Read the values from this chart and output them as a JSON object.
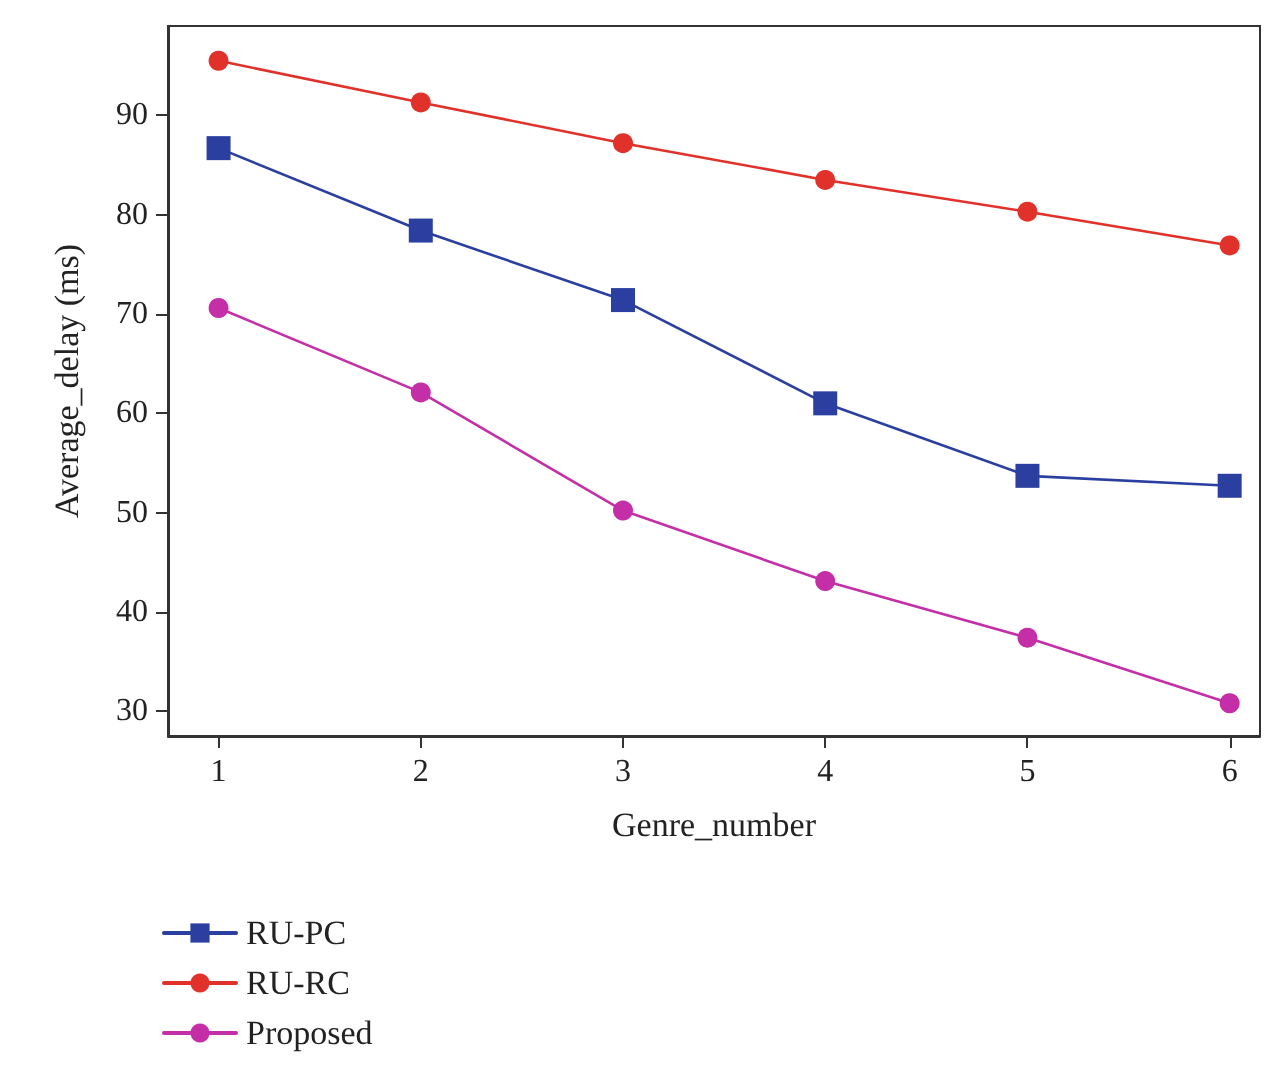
{
  "chart_data": {
    "type": "line",
    "xlabel": "Genre_number",
    "ylabel": "Average_delay (ms)",
    "x": [
      1,
      2,
      3,
      4,
      5,
      6
    ],
    "xlim": [
      0.75,
      6.15
    ],
    "xticks": [
      1,
      2,
      3,
      4,
      5,
      6
    ],
    "ylim": [
      27.5,
      99
    ],
    "yticks": [
      30,
      40,
      50,
      60,
      70,
      80,
      90
    ],
    "series": [
      {
        "name": "RU-PC",
        "color": "#2b3fa0",
        "marker": "square",
        "values": [
          86.7,
          78.4,
          71.4,
          61.0,
          53.7,
          52.7
        ]
      },
      {
        "name": "RU-RC",
        "color": "#e0312a",
        "marker": "circle",
        "values": [
          95.5,
          91.3,
          87.2,
          83.5,
          80.3,
          76.9
        ]
      },
      {
        "name": "Proposed",
        "color": "#c42fa8",
        "marker": "circle",
        "values": [
          70.6,
          62.1,
          50.2,
          43.1,
          37.4,
          30.8
        ]
      }
    ],
    "legend": "bottom left",
    "grid": false,
    "line_style": "solid"
  }
}
